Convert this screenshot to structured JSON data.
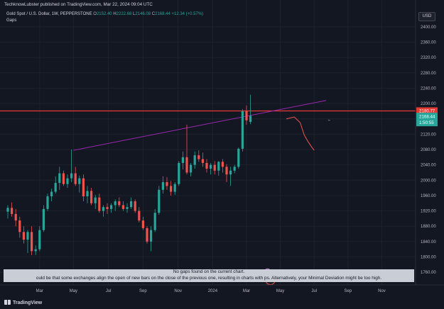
{
  "publisher": {
    "text": "TechknowLubster published on TradingView.com, Mar 22, 2024 09:04 UTC"
  },
  "legend": {
    "symbol": "Gold Spot / U.S. Dollar, 1W, PEPPERSTONE",
    "o_label": "O",
    "o_value": "2152.40",
    "h_label": "H",
    "h_value": "2222.68",
    "l_label": "L",
    "l_value": "2146.08",
    "c_label": "C",
    "c_value": "2168.44",
    "change": "+12.34 (+0.57%)",
    "indicator": "Gaps"
  },
  "currency_button": "USD",
  "gap_notice": {
    "line1": "No gaps found on the current chart.",
    "line2": "ould be that some exchanges align the open of new bars on the close of the previous one, resulting in charts with    ps. Alternatively, your Minimal Deviation might be too high."
  },
  "footer": {
    "logo": "TradingView"
  },
  "colors": {
    "background": "#131722",
    "up": "#26a69a",
    "down": "#ef5350",
    "trendline": "#9c27b0",
    "resistance": "#e53935",
    "grid": "#1e222d"
  },
  "chart_data": {
    "type": "candlestick",
    "title": "Gold Spot / U.S. Dollar, 1W, PEPPERSTONE",
    "ylim": [
      1740,
      2420
    ],
    "y_ticks": [
      2400,
      2360,
      2320,
      2280,
      2240,
      2200,
      2160,
      2120,
      2080,
      2040,
      2000,
      1960,
      1920,
      1880,
      1840,
      1800,
      1760
    ],
    "x_ticks": [
      {
        "label": "Mar",
        "week": 8
      },
      {
        "label": "May",
        "week": 16.5
      },
      {
        "label": "Jul",
        "week": 25.3
      },
      {
        "label": "Sep",
        "week": 34
      },
      {
        "label": "Nov",
        "week": 42.8
      },
      {
        "label": "2024",
        "week": 51.5
      },
      {
        "label": "Mar",
        "week": 60
      },
      {
        "label": "May",
        "week": 68.5
      },
      {
        "label": "Jul",
        "week": 77
      },
      {
        "label": "Sep",
        "week": 85.5
      },
      {
        "label": "Nov",
        "week": 94
      }
    ],
    "x_range": [
      0,
      100
    ],
    "last_price": {
      "value": "2168.44",
      "countdown": "1:50:55"
    },
    "resistance": {
      "value": "2180.77",
      "level": 2180.77
    },
    "candles": [
      [
        1918,
        1935,
        1900,
        1928
      ],
      [
        1928,
        1942,
        1905,
        1912
      ],
      [
        1912,
        1925,
        1880,
        1895
      ],
      [
        1895,
        1905,
        1850,
        1865
      ],
      [
        1865,
        1880,
        1835,
        1845
      ],
      [
        1845,
        1870,
        1810,
        1865
      ],
      [
        1865,
        1880,
        1805,
        1815
      ],
      [
        1815,
        1830,
        1805,
        1820
      ],
      [
        1820,
        1880,
        1815,
        1870
      ],
      [
        1870,
        1935,
        1865,
        1925
      ],
      [
        1925,
        1965,
        1920,
        1958
      ],
      [
        1958,
        1978,
        1945,
        1970
      ],
      [
        1970,
        2010,
        1965,
        1993
      ],
      [
        1993,
        2035,
        1975,
        2018
      ],
      [
        2018,
        2025,
        1985,
        1990
      ],
      [
        1990,
        2015,
        1980,
        2005
      ],
      [
        2005,
        2080,
        1995,
        2018
      ],
      [
        2018,
        2035,
        1985,
        1990
      ],
      [
        1990,
        2012,
        1968,
        2005
      ],
      [
        2005,
        2015,
        1945,
        1958
      ],
      [
        1958,
        1985,
        1940,
        1972
      ],
      [
        1972,
        1980,
        1935,
        1940
      ],
      [
        1940,
        1962,
        1925,
        1955
      ],
      [
        1955,
        1965,
        1915,
        1920
      ],
      [
        1920,
        1935,
        1905,
        1930
      ],
      [
        1930,
        1940,
        1912,
        1925
      ],
      [
        1925,
        1940,
        1915,
        1935
      ],
      [
        1935,
        1950,
        1920,
        1945
      ],
      [
        1945,
        1955,
        1930,
        1935
      ],
      [
        1935,
        1945,
        1920,
        1925
      ],
      [
        1925,
        1940,
        1915,
        1930
      ],
      [
        1930,
        1955,
        1925,
        1945
      ],
      [
        1945,
        1950,
        1915,
        1920
      ],
      [
        1920,
        1930,
        1890,
        1895
      ],
      [
        1895,
        1905,
        1870,
        1875
      ],
      [
        1875,
        1880,
        1835,
        1840
      ],
      [
        1840,
        1880,
        1815,
        1870
      ],
      [
        1870,
        1925,
        1865,
        1915
      ],
      [
        1915,
        1985,
        1910,
        1975
      ],
      [
        1975,
        2010,
        1965,
        1995
      ],
      [
        1995,
        2008,
        1975,
        1985
      ],
      [
        1985,
        1998,
        1960,
        1970
      ],
      [
        1970,
        1995,
        1962,
        1990
      ],
      [
        1990,
        2050,
        1985,
        2045
      ],
      [
        2045,
        2075,
        2028,
        2060
      ],
      [
        2060,
        2145,
        2015,
        2020
      ],
      [
        2020,
        2045,
        2010,
        2040
      ],
      [
        2040,
        2075,
        2030,
        2065
      ],
      [
        2065,
        2078,
        2048,
        2055
      ],
      [
        2055,
        2072,
        2035,
        2045
      ],
      [
        2045,
        2055,
        2020,
        2030
      ],
      [
        2030,
        2045,
        2015,
        2040
      ],
      [
        2040,
        2050,
        2015,
        2025
      ],
      [
        2025,
        2050,
        2012,
        2048
      ],
      [
        2048,
        2055,
        2020,
        2035
      ],
      [
        2035,
        2042,
        1995,
        2015
      ],
      [
        2015,
        2035,
        1985,
        2025
      ],
      [
        2025,
        2040,
        2018,
        2035
      ],
      [
        2035,
        2085,
        2030,
        2082
      ],
      [
        2082,
        2185,
        2075,
        2180
      ],
      [
        2180,
        2195,
        2145,
        2156
      ],
      [
        2152,
        2223,
        2146,
        2168
      ]
    ],
    "annotations": {
      "trendline": [
        [
          16.5,
          2078
        ],
        [
          80,
          2208
        ]
      ],
      "projection_path": [
        [
          70,
          2160
        ],
        [
          72,
          2165
        ],
        [
          73.5,
          2150
        ],
        [
          74.5,
          2118
        ],
        [
          75.5,
          2100
        ],
        [
          76.5,
          2085
        ],
        [
          77,
          2078
        ]
      ]
    }
  }
}
